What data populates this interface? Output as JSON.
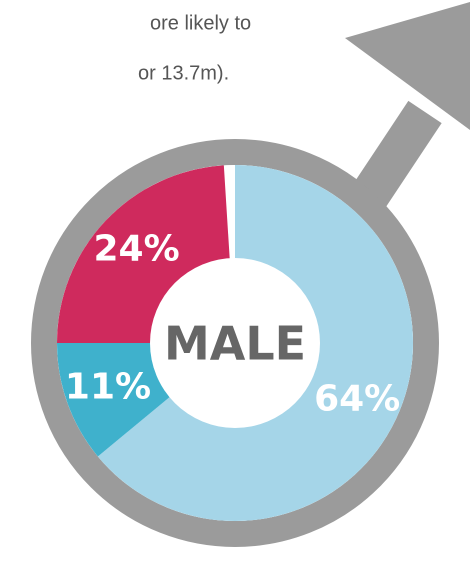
{
  "chart_data": {
    "type": "pie",
    "annotations": [
      "ore likely to",
      "or 13.7m)."
    ],
    "center_label": "MALE",
    "values": [
      64,
      11,
      24
    ],
    "value_labels": [
      "64%",
      "11%",
      "24%"
    ],
    "colors": [
      "#a5d5e8",
      "#3fb1cc",
      "#cf2a5d"
    ]
  }
}
